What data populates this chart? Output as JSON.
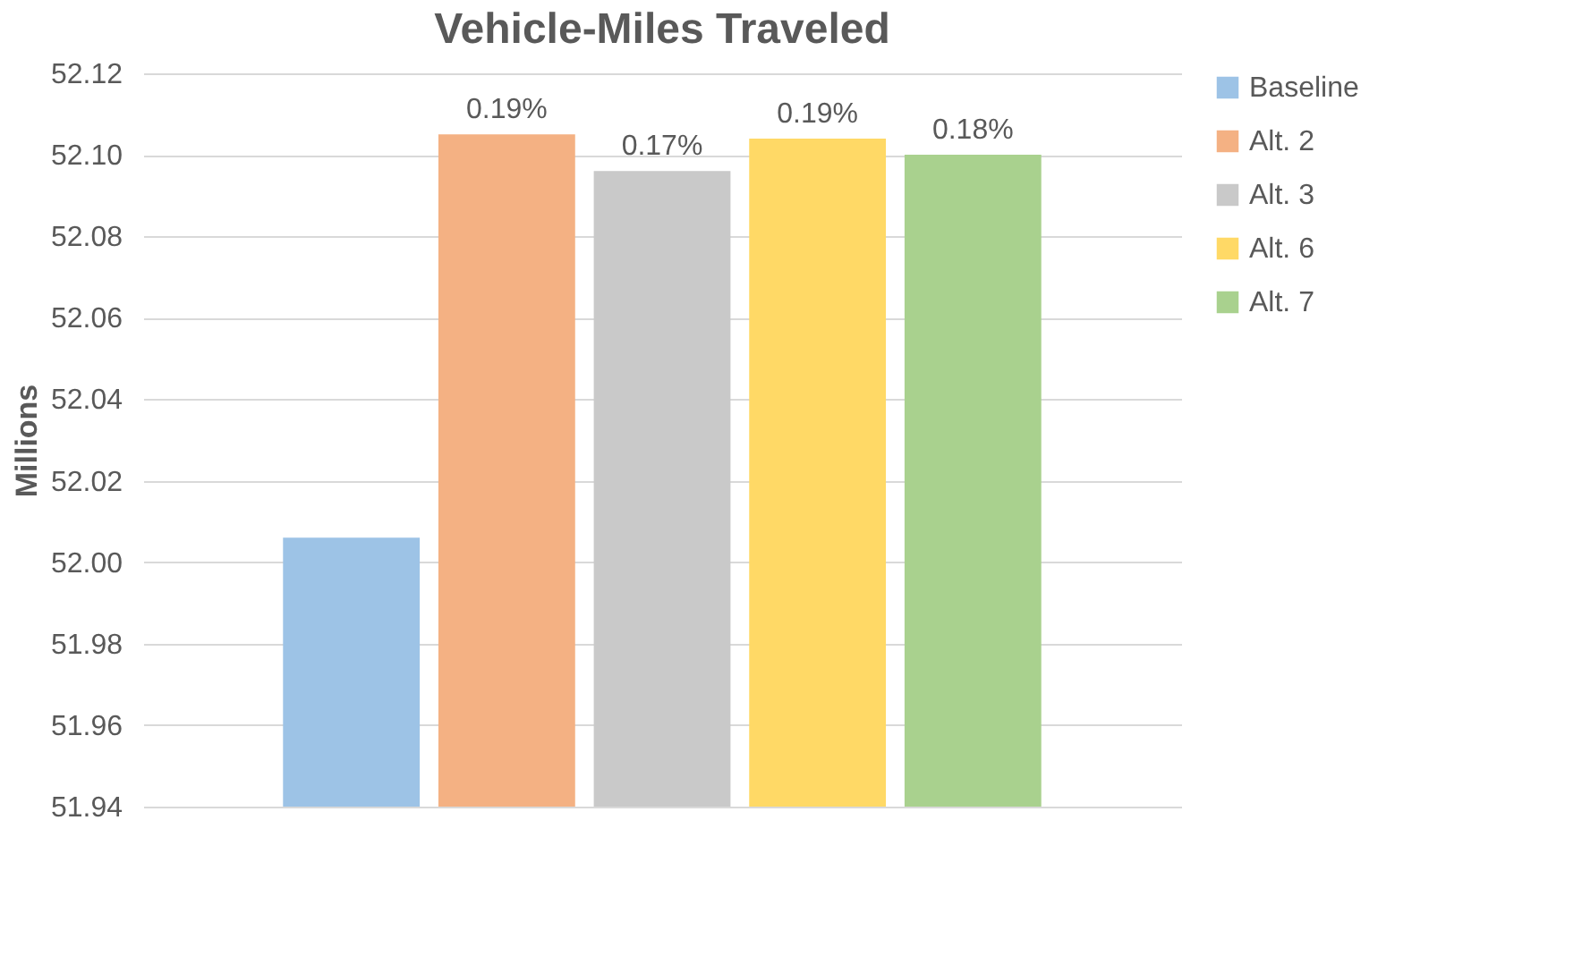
{
  "chart_data": {
    "type": "bar",
    "title": "Vehicle-Miles Traveled",
    "ylabel": "Millions",
    "categories": [
      null
    ],
    "series": [
      {
        "name": "Baseline",
        "color": "#9dc3e6",
        "values": [
          52.006
        ]
      },
      {
        "name": "Alt. 2",
        "color": "#f4b183",
        "values": [
          52.105
        ]
      },
      {
        "name": "Alt. 3",
        "color": "#c9c9c9",
        "values": [
          52.096
        ]
      },
      {
        "name": "Alt. 6",
        "color": "#ffd966",
        "values": [
          52.104
        ]
      },
      {
        "name": "Alt. 7",
        "color": "#a9d18e",
        "values": [
          52.1
        ]
      }
    ],
    "annotations": [
      {
        "text": "0.19%",
        "y": 52.105
      },
      {
        "text": "0.17%",
        "y": 52.096
      },
      {
        "text": "0.19%",
        "y": 52.104
      },
      {
        "text": "0.18%",
        "y": 52.1
      }
    ],
    "ylim": [
      51.94,
      52.12
    ],
    "yticks": [
      51.94,
      51.96,
      51.98,
      {
        "value": 52.0,
        "label": "52.00"
      },
      52.02,
      52.04,
      52.06,
      52.08,
      {
        "value": 52.1,
        "label": "52.10"
      },
      52.12
    ],
    "grid": "y",
    "legend": "right"
  }
}
